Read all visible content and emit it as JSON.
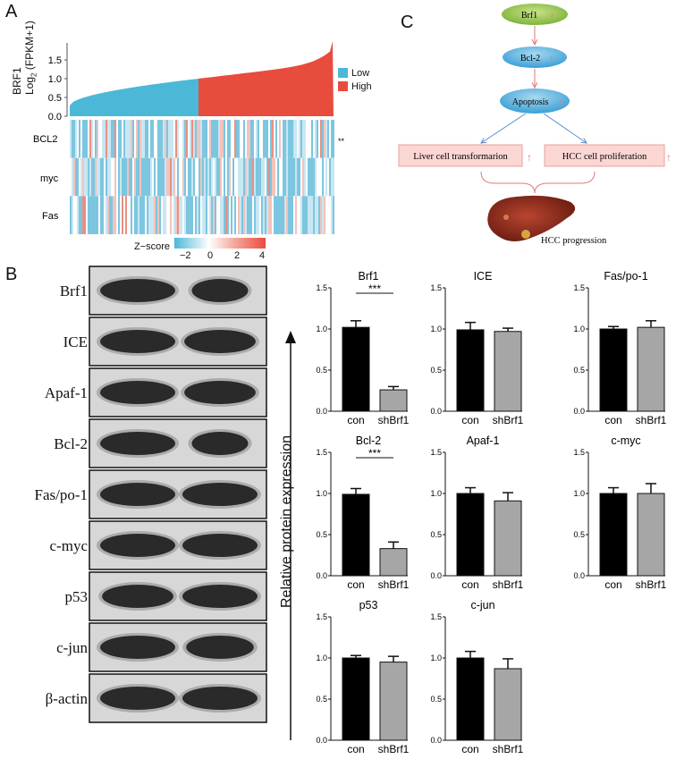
{
  "panels": {
    "a": "A",
    "b": "B",
    "c": "C"
  },
  "panelA": {
    "ylabel_line1": "BRF1",
    "ylabel_line2": "Log",
    "ylabel_sub": "2",
    "ylabel_line2b": " (FPKM+1)",
    "yticks": [
      "0.0",
      "0.5",
      "1.0",
      "1.5"
    ],
    "legend": [
      {
        "label": "Low",
        "color": "#4bb8d8"
      },
      {
        "label": "High",
        "color": "#e84c3d"
      }
    ],
    "rows": [
      "BCL2",
      "myc",
      "Fas"
    ],
    "significance": "**",
    "zscore_label": "Z−score",
    "zscore_ticks": [
      "−2",
      "0",
      "2",
      "4"
    ]
  },
  "panelB": {
    "blot_labels": [
      "Brf1",
      "ICE",
      "Apaf-1",
      "Bcl-2",
      "Fas/po-1",
      "c-myc",
      "p53",
      "c-jun",
      "β-actin"
    ],
    "ylabel": "Relative protein expression"
  },
  "panelC": {
    "nodes": [
      "Brf1",
      "Bcl-2",
      "Apoptosis",
      "Liver cell transformarion",
      "HCC cell proliferation",
      "HCC progression"
    ]
  },
  "chart_data": [
    {
      "type": "bar",
      "title": "Brf1",
      "categories": [
        "con",
        "shBrf1"
      ],
      "values": [
        1.02,
        0.26
      ],
      "errors": [
        0.08,
        0.04
      ],
      "ylim": [
        0,
        1.5
      ],
      "yticks": [
        "0.0",
        "0.5",
        "1.0",
        "1.5"
      ],
      "significance": "***",
      "colors": [
        "#000000",
        "#a6a6a6"
      ]
    },
    {
      "type": "bar",
      "title": "ICE",
      "categories": [
        "con",
        "shBrf1"
      ],
      "values": [
        0.99,
        0.97
      ],
      "errors": [
        0.09,
        0.04
      ],
      "ylim": [
        0,
        1.5
      ],
      "yticks": [
        "0.0",
        "0.5",
        "1.0",
        "1.5"
      ],
      "significance": "",
      "colors": [
        "#000000",
        "#a6a6a6"
      ]
    },
    {
      "type": "bar",
      "title": "Fas/po-1",
      "categories": [
        "con",
        "shBrf1"
      ],
      "values": [
        1.0,
        1.02
      ],
      "errors": [
        0.03,
        0.08
      ],
      "ylim": [
        0,
        1.5
      ],
      "yticks": [
        "0.0",
        "0.5",
        "1.0",
        "1.5"
      ],
      "significance": "",
      "colors": [
        "#000000",
        "#a6a6a6"
      ]
    },
    {
      "type": "bar",
      "title": "Bcl-2",
      "categories": [
        "con",
        "shBrf1"
      ],
      "values": [
        0.99,
        0.33
      ],
      "errors": [
        0.07,
        0.08
      ],
      "ylim": [
        0,
        1.5
      ],
      "yticks": [
        "0.0",
        "0.5",
        "1.0",
        "1.5"
      ],
      "significance": "***",
      "colors": [
        "#000000",
        "#a6a6a6"
      ]
    },
    {
      "type": "bar",
      "title": "Apaf-1",
      "categories": [
        "con",
        "shBrf1"
      ],
      "values": [
        1.0,
        0.91
      ],
      "errors": [
        0.07,
        0.1
      ],
      "ylim": [
        0,
        1.5
      ],
      "yticks": [
        "0.0",
        "0.5",
        "1.0",
        "1.5"
      ],
      "significance": "",
      "colors": [
        "#000000",
        "#a6a6a6"
      ]
    },
    {
      "type": "bar",
      "title": "c-myc",
      "categories": [
        "con",
        "shBrf1"
      ],
      "values": [
        1.0,
        1.0
      ],
      "errors": [
        0.07,
        0.12
      ],
      "ylim": [
        0,
        1.5
      ],
      "yticks": [
        "0.0",
        "0.5",
        "1.0",
        "1.5"
      ],
      "significance": "",
      "colors": [
        "#000000",
        "#a6a6a6"
      ]
    },
    {
      "type": "bar",
      "title": "p53",
      "categories": [
        "con",
        "shBrf1"
      ],
      "values": [
        1.0,
        0.95
      ],
      "errors": [
        0.03,
        0.07
      ],
      "ylim": [
        0,
        1.5
      ],
      "yticks": [
        "0.0",
        "0.5",
        "1.0",
        "1.5"
      ],
      "significance": "",
      "colors": [
        "#000000",
        "#a6a6a6"
      ]
    },
    {
      "type": "bar",
      "title": "c-jun",
      "categories": [
        "con",
        "shBrf1"
      ],
      "values": [
        1.0,
        0.87
      ],
      "errors": [
        0.08,
        0.12
      ],
      "ylim": [
        0,
        1.5
      ],
      "yticks": [
        "0.0",
        "0.5",
        "1.0",
        "1.5"
      ],
      "significance": "",
      "colors": [
        "#000000",
        "#a6a6a6"
      ]
    }
  ]
}
